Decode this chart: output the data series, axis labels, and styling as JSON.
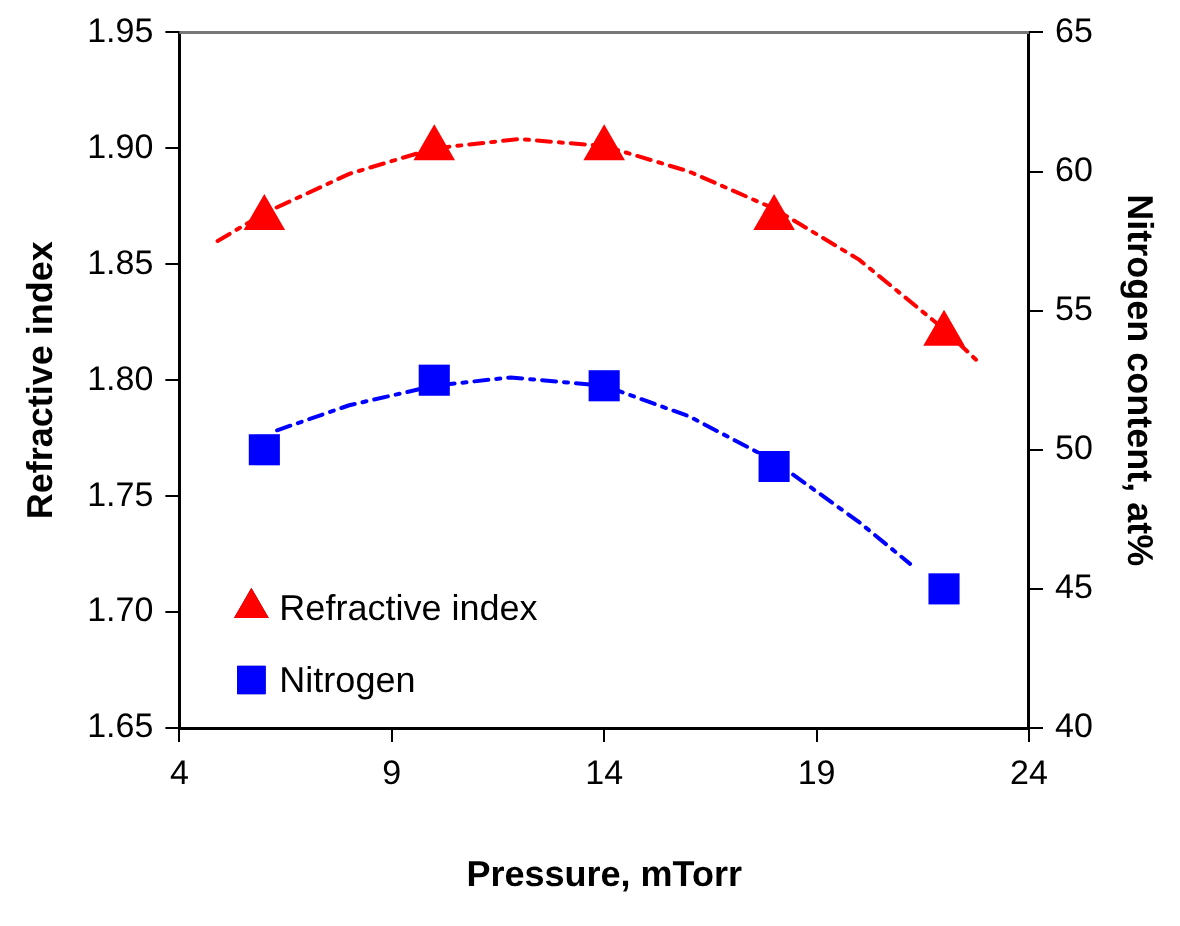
{
  "chart_data": {
    "type": "scatter",
    "xlabel": "Pressure, mTorr",
    "ylabel": "Refractive index",
    "y2label": "Nitrogen content, at%",
    "xlim": [
      4,
      24
    ],
    "xticks": [
      4,
      9,
      14,
      19,
      24
    ],
    "ylim": [
      1.65,
      1.95
    ],
    "yticks": [
      1.65,
      {
        "value": 1.7,
        "label": "1.70"
      },
      1.75,
      {
        "value": 1.8,
        "label": "1.80"
      },
      1.85,
      {
        "value": 1.9,
        "label": "1.90"
      },
      1.95
    ],
    "y2lim": [
      40,
      65
    ],
    "y2ticks": [
      40,
      45,
      50,
      55,
      60,
      65
    ],
    "grid": false,
    "legend": "bottom left",
    "series": [
      {
        "name": "Refractive index",
        "marker": "triangle",
        "color": "#ff0000",
        "x": [
          6,
          10,
          14,
          18,
          22
        ],
        "values": [
          1.87,
          1.9,
          1.9,
          1.87,
          1.82
        ]
      },
      {
        "name": "Nitrogen",
        "marker": "square",
        "axis": "y2",
        "color": "#0000ff",
        "x": [
          6,
          10,
          14,
          18,
          22
        ],
        "values": [
          50,
          52.5,
          52.3,
          49.4,
          45
        ]
      },
      {
        "type": "line",
        "marker": "none",
        "line_style": "dashed",
        "color": "#ff0000",
        "x": [
          4.9,
          6,
          8,
          10,
          12,
          14,
          16,
          18,
          20,
          22,
          22.8
        ],
        "values": [
          1.86,
          1.872,
          1.889,
          1.9,
          1.904,
          1.901,
          1.89,
          1.874,
          1.852,
          1.822,
          1.808
        ]
      },
      {
        "type": "line",
        "marker": "none",
        "line_style": "dashed",
        "axis": "y2",
        "color": "#0000ff",
        "x": [
          6.3,
          8,
          10,
          11.8,
          14,
          16,
          18,
          20,
          21.2
        ],
        "values": [
          50.7,
          51.6,
          52.3,
          52.6,
          52.3,
          51.2,
          49.6,
          47.4,
          45.9
        ]
      }
    ]
  }
}
